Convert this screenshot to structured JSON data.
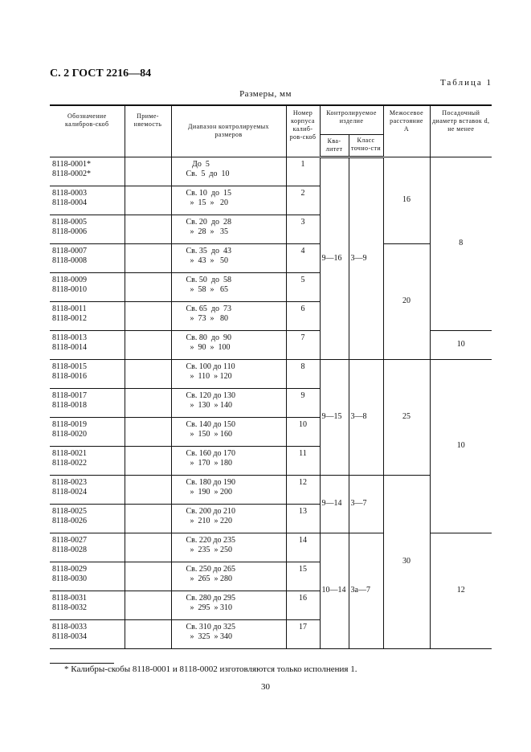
{
  "header": {
    "page_label": "С. 2 ГОСТ 2216—84",
    "table_label": "Таблица 1",
    "units": "Размеры, мм"
  },
  "columns": {
    "designation": "Обозначение калибров-скоб",
    "applicability": "Приме-\nняемость",
    "range": "Диапазон контролируемых размеров",
    "body_number": "Номер корпуса калиб-ров-скоб",
    "controlled_item": "Контролируемое изделие",
    "qualitet": "Ква-\nлитет",
    "accuracy_class": "Класс точно-сти",
    "center_distance": "Межосевое расстояние\nA",
    "insert_diameter": "Посадочный диаметр вставок d,\nне менее"
  },
  "rows": [
    {
      "code1": "8118-0001*",
      "code2": "8118-0002*",
      "range1": "   До  5",
      "range2": "Св.  5  до  10",
      "n": "1"
    },
    {
      "code1": "8118-0003",
      "code2": "8118-0004",
      "range1": "Св. 10  до  15",
      "range2": "  »  15  »   20",
      "n": "2"
    },
    {
      "code1": "8118-0005",
      "code2": "8118-0006",
      "range1": "Св. 20  до  28",
      "range2": "  »  28  »   35",
      "n": "3"
    },
    {
      "code1": "8118-0007",
      "code2": "8118-0008",
      "range1": "Св. 35  до  43",
      "range2": "  »  43  »   50",
      "n": "4"
    },
    {
      "code1": "8118-0009",
      "code2": "8118-0010",
      "range1": "Св. 50  до  58",
      "range2": "  »  58  »   65",
      "n": "5"
    },
    {
      "code1": "8118-0011",
      "code2": "8118-0012",
      "range1": "Св. 65  до  73",
      "range2": "  »  73  »   80",
      "n": "6"
    },
    {
      "code1": "8118-0013",
      "code2": "8118-0014",
      "range1": "Св. 80  до  90",
      "range2": "  »  90  »  100",
      "n": "7"
    },
    {
      "code1": "8118-0015",
      "code2": "8118-0016",
      "range1": "Св. 100 до 110",
      "range2": "  »  110  » 120",
      "n": "8"
    },
    {
      "code1": "8118-0017",
      "code2": "8118-0018",
      "range1": "Св. 120 до 130",
      "range2": "  »  130  » 140",
      "n": "9"
    },
    {
      "code1": "8118-0019",
      "code2": "8118-0020",
      "range1": "Св. 140 до 150",
      "range2": "  »  150  » 160",
      "n": "10"
    },
    {
      "code1": "8118-0021",
      "code2": "8118-0022",
      "range1": "Св. 160 до 170",
      "range2": "  »  170  » 180",
      "n": "11"
    },
    {
      "code1": "8118-0023",
      "code2": "8118-0024",
      "range1": "Св. 180 до 190",
      "range2": "  »  190  » 200",
      "n": "12"
    },
    {
      "code1": "8118-0025",
      "code2": "8118-0026",
      "range1": "Св. 200 до 210",
      "range2": "  »  210  » 220",
      "n": "13"
    },
    {
      "code1": "8118-0027",
      "code2": "8118-0028",
      "range1": "Св. 220 до 235",
      "range2": "  »  235  » 250",
      "n": "14"
    },
    {
      "code1": "8118-0029",
      "code2": "8118-0030",
      "range1": "Св. 250 до 265",
      "range2": "  »  265  » 280",
      "n": "15"
    },
    {
      "code1": "8118-0031",
      "code2": "8118-0032",
      "range1": "Св. 280 до 295",
      "range2": "  »  295  » 310",
      "n": "16"
    },
    {
      "code1": "8118-0033",
      "code2": "8118-0034",
      "range1": "Св. 310 до 325",
      "range2": "  »  325  » 340",
      "n": "17"
    }
  ],
  "groups": {
    "qualitet": [
      {
        "start": 0,
        "span": 7,
        "value": "9—16"
      },
      {
        "start": 7,
        "span": 4,
        "value": "9—15"
      },
      {
        "start": 11,
        "span": 2,
        "value": "9—14"
      },
      {
        "start": 13,
        "span": 4,
        "value": "10—14"
      }
    ],
    "accuracy_class": [
      {
        "start": 0,
        "span": 7,
        "value": "3—9"
      },
      {
        "start": 7,
        "span": 4,
        "value": "3—8"
      },
      {
        "start": 11,
        "span": 2,
        "value": "3—7"
      },
      {
        "start": 13,
        "span": 4,
        "value": "3а—7"
      }
    ],
    "center_distance": [
      {
        "start": 0,
        "span": 3,
        "value": "16"
      },
      {
        "start": 3,
        "span": 4,
        "value": "20"
      },
      {
        "start": 7,
        "span": 4,
        "value": "25"
      },
      {
        "start": 11,
        "span": 6,
        "value": "30"
      }
    ],
    "insert_diameter": [
      {
        "start": 0,
        "span": 6,
        "value": "8"
      },
      {
        "start": 6,
        "span": 1,
        "value": "10"
      },
      {
        "start": 7,
        "span": 6,
        "value": "10"
      },
      {
        "start": 13,
        "span": 4,
        "value": "12"
      }
    ]
  },
  "footnote": "* Калибры-скобы 8118-0001 и 8118-0002 изготовляются только исполнения 1.",
  "page_number": "30"
}
